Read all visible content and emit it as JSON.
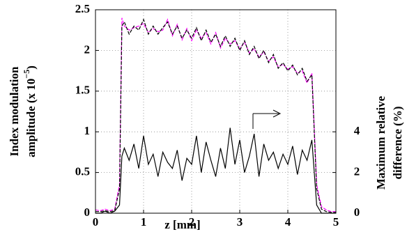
{
  "chart_data": {
    "type": "line",
    "xlabel": "z [mm]",
    "ylabel": {
      "line1": "Index modulation",
      "line2": "amplitude (x 10",
      "exponent": "−5",
      "line2_end": ")"
    },
    "y2label": [
      "Maximum relative",
      "difference (%)"
    ],
    "x": [
      0,
      0.1,
      0.2,
      0.3,
      0.4,
      0.5,
      0.55,
      0.6,
      0.7,
      0.8,
      0.9,
      1.0,
      1.1,
      1.2,
      1.3,
      1.4,
      1.5,
      1.6,
      1.7,
      1.8,
      1.9,
      2.0,
      2.1,
      2.2,
      2.3,
      2.4,
      2.5,
      2.6,
      2.7,
      2.8,
      2.9,
      3.0,
      3.1,
      3.2,
      3.3,
      3.4,
      3.5,
      3.6,
      3.7,
      3.8,
      3.9,
      4.0,
      4.1,
      4.2,
      4.3,
      4.4,
      4.5,
      4.6,
      4.7,
      4.8,
      4.9,
      5.0
    ],
    "series": [
      {
        "color": "#ff00ff",
        "dash": true,
        "values": [
          0.04,
          0.03,
          0.05,
          0.03,
          0.05,
          0.35,
          2.4,
          2.3,
          2.25,
          2.28,
          2.3,
          2.33,
          2.22,
          2.27,
          2.23,
          2.25,
          2.38,
          2.18,
          2.32,
          2.13,
          2.27,
          2.12,
          2.25,
          2.15,
          2.22,
          2.08,
          2.22,
          2.03,
          2.15,
          2.08,
          2.12,
          2.02,
          2.1,
          1.97,
          2.02,
          1.92,
          1.98,
          1.87,
          1.92,
          1.8,
          1.83,
          1.77,
          1.8,
          1.72,
          1.75,
          1.6,
          1.72,
          0.35,
          0.08,
          0.04,
          0.02,
          0.02
        ]
      },
      {
        "color": "#000000",
        "dash": true,
        "values": [
          0.02,
          0.02,
          0.03,
          0.02,
          0.03,
          0.3,
          2.3,
          2.35,
          2.2,
          2.3,
          2.25,
          2.38,
          2.2,
          2.3,
          2.2,
          2.28,
          2.35,
          2.2,
          2.3,
          2.15,
          2.25,
          2.15,
          2.28,
          2.12,
          2.25,
          2.1,
          2.2,
          2.05,
          2.18,
          2.05,
          2.15,
          2.0,
          2.12,
          1.95,
          2.05,
          1.9,
          2.0,
          1.85,
          1.95,
          1.78,
          1.85,
          1.75,
          1.82,
          1.7,
          1.78,
          1.62,
          1.7,
          0.3,
          0.05,
          0.02,
          0.01,
          0.01
        ]
      },
      {
        "color": "#000000",
        "axis": "y2",
        "values": [
          0,
          0,
          0.1,
          0,
          0.1,
          0.4,
          2.8,
          3.2,
          2.6,
          3.4,
          2.2,
          3.8,
          2.4,
          2.9,
          1.8,
          3.0,
          2.5,
          2.2,
          3.1,
          1.6,
          2.7,
          2.4,
          3.8,
          2.0,
          3.5,
          2.6,
          1.8,
          3.2,
          2.2,
          4.2,
          2.4,
          3.6,
          2.0,
          2.8,
          3.9,
          1.8,
          3.4,
          2.6,
          3.0,
          2.2,
          2.9,
          2.4,
          3.3,
          1.9,
          3.1,
          2.6,
          3.6,
          0.4,
          0,
          0,
          0,
          0
        ]
      }
    ],
    "xlim": [
      0,
      5
    ],
    "xticks": [
      0,
      1,
      2,
      3,
      4,
      5
    ],
    "ylim": [
      0,
      2.5
    ],
    "yticks": [
      0,
      0.5,
      1,
      1.5,
      2,
      2.5
    ],
    "y2lim": [
      0,
      10
    ],
    "y2ticks": [
      0,
      2,
      4
    ],
    "grid": true
  }
}
